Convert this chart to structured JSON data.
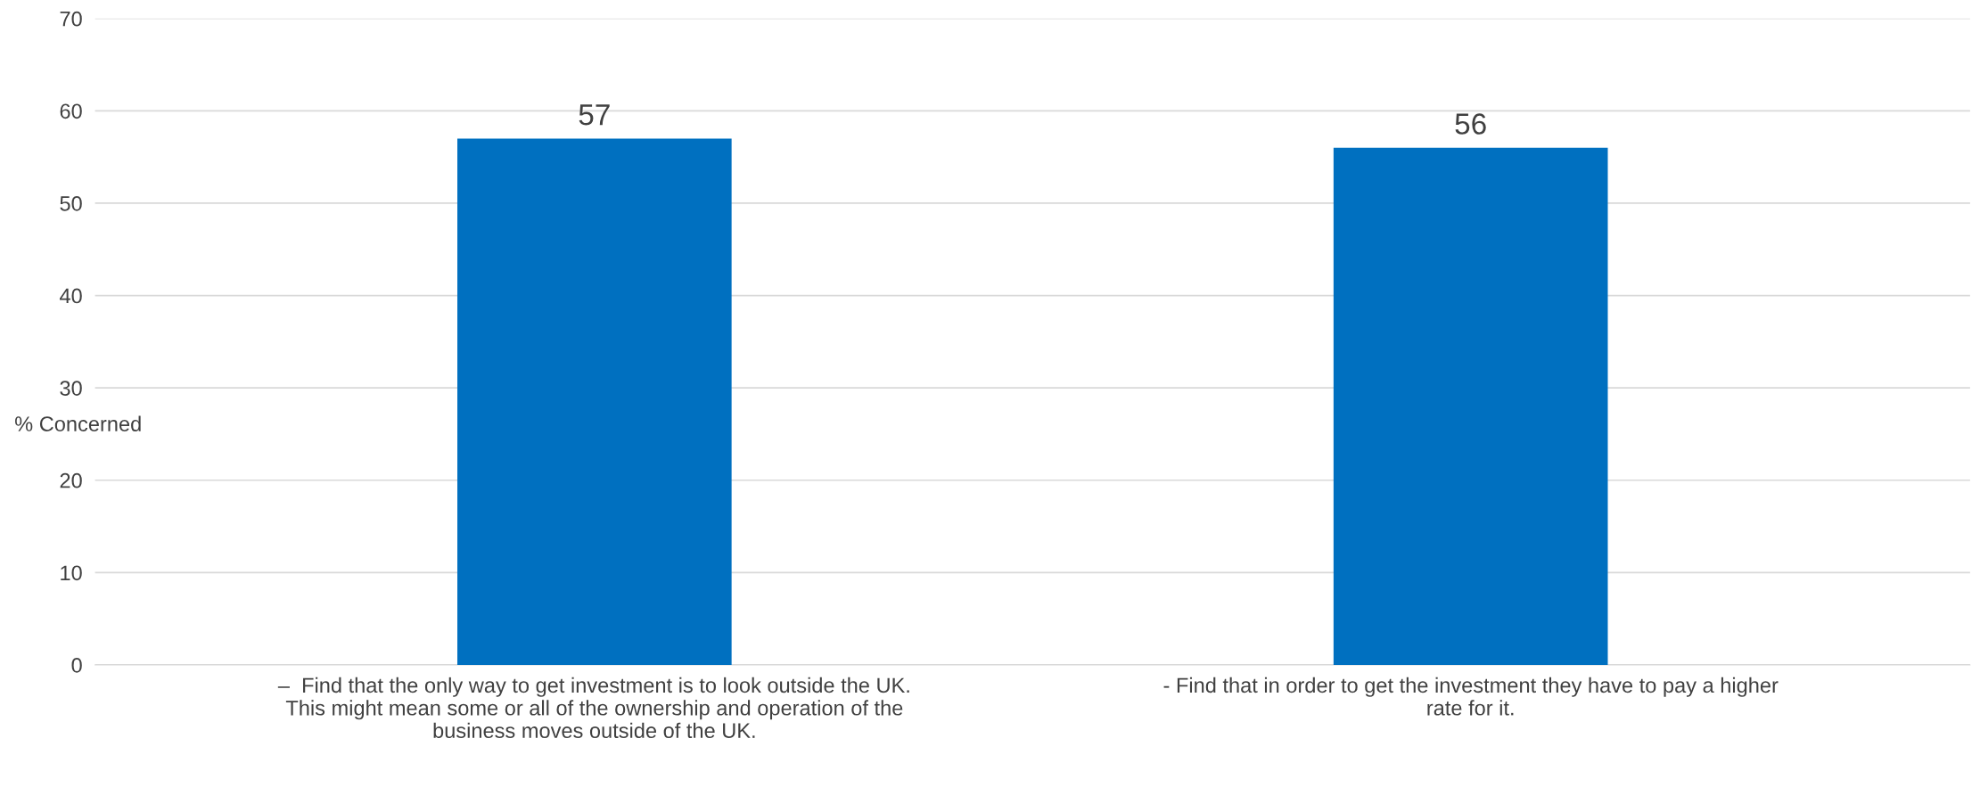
{
  "chart_data": {
    "type": "bar",
    "ylabel": "% Concerned",
    "categories": [
      "–  Find that the only way to get investment is to look outside the UK.\nThis might mean some or all of the ownership and operation of the\nbusiness moves outside of the UK.",
      "- Find that in order to get the investment they have to pay a higher\nrate for it."
    ],
    "values": [
      57,
      56
    ],
    "color": "#0070c0",
    "data_labels": true,
    "ylim": [
      0,
      70
    ],
    "yticks": [
      0,
      10,
      20,
      30,
      40,
      50,
      60,
      70
    ],
    "grid": "y",
    "legend": false
  }
}
